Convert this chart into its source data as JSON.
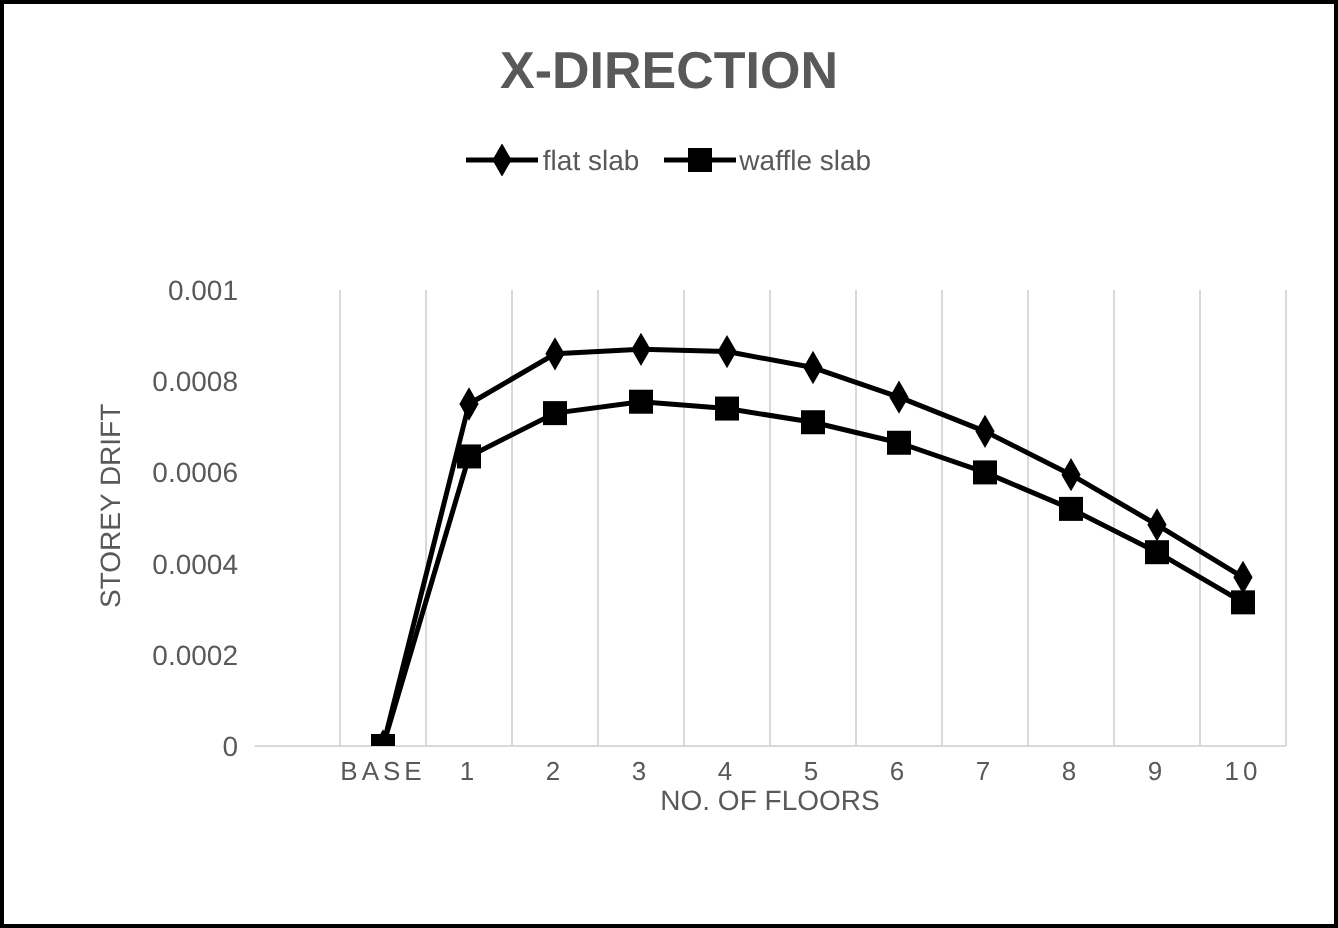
{
  "chart_data": {
    "type": "line",
    "title": "X-DIRECTION",
    "xlabel": "NO. OF FLOORS",
    "ylabel": "STOREY DRIFT",
    "categories": [
      null,
      "BASE",
      "1",
      "2",
      "3",
      "4",
      "5",
      "6",
      "7",
      "8",
      "9",
      "10"
    ],
    "series": [
      {
        "name": "flat slab",
        "color": "#000000",
        "marker": "diamond",
        "values": [
          null,
          0,
          0.00075,
          0.00086,
          0.00087,
          0.000865,
          0.00083,
          0.000765,
          0.00069,
          0.000595,
          0.000485,
          0.00037
        ]
      },
      {
        "name": "waffle slab",
        "color": "#000000",
        "marker": "square",
        "values": [
          null,
          0,
          0.000635,
          0.00073,
          0.000755,
          0.00074,
          0.00071,
          0.000665,
          0.0006,
          0.00052,
          0.000425,
          0.000315
        ]
      }
    ],
    "ylim": [
      0,
      0.001
    ],
    "yticks": [
      0,
      0.0002,
      0.0004,
      0.0006,
      0.0008,
      0.001
    ],
    "grid": "x",
    "legend": "top"
  }
}
